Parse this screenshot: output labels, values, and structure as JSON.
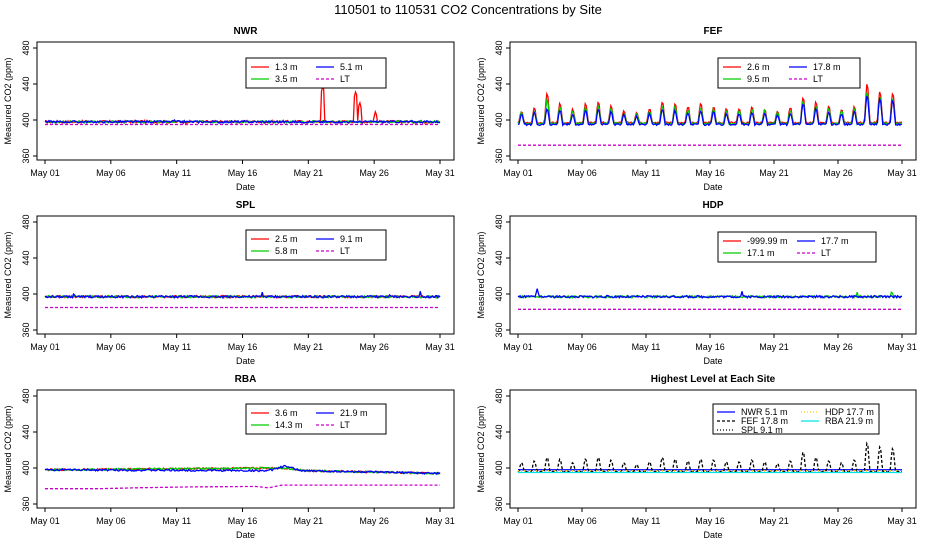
{
  "page": {
    "title": "110501  to  110531 CO2 Concentrations by Site"
  },
  "colors": {
    "red": "#ff0000",
    "green": "#00cc00",
    "blue": "#0000ff",
    "purple": "#cc00cc",
    "black": "#000000",
    "yellow": "#ffcc00",
    "cyan": "#00e5e5"
  },
  "chart_data": [
    {
      "type": "line",
      "title": "NWR",
      "xlabel": "Date",
      "ylabel": "Measured CO2 (ppm)",
      "x_ticks": [
        "May 01",
        "May 06",
        "May 11",
        "May 16",
        "May 21",
        "May 26",
        "May 31"
      ],
      "y_ticks": [
        "360",
        "400",
        "440",
        "480"
      ],
      "ylim": [
        360,
        480
      ],
      "xlim": [
        "May 01",
        "May 31"
      ],
      "grid": false,
      "legend": {
        "placement": "top-right",
        "columns": 2
      },
      "series": [
        {
          "name": "1.3 m",
          "color": "#ff0000",
          "style": "solid",
          "base": 398,
          "noise": 1.5,
          "spikes": [
            [
              22.1,
              438
            ],
            [
              24.6,
              432
            ],
            [
              24.9,
              420
            ],
            [
              26.1,
              410
            ]
          ]
        },
        {
          "name": "3.5 m",
          "color": "#00cc00",
          "style": "solid",
          "base": 398,
          "noise": 1.2,
          "spikes": []
        },
        {
          "name": "5.1 m",
          "color": "#0000ff",
          "style": "solid",
          "base": 398,
          "noise": 1.2,
          "spikes": [
            [
              10.8,
              402
            ]
          ]
        },
        {
          "name": "LT",
          "color": "#cc00cc",
          "style": "dashed",
          "base": 395,
          "noise": 0,
          "spikes": []
        }
      ]
    },
    {
      "type": "line",
      "title": "FEF",
      "xlabel": "Date",
      "ylabel": "Measured CO2 (ppm)",
      "x_ticks": [
        "May 01",
        "May 06",
        "May 11",
        "May 16",
        "May 21",
        "May 26",
        "May 31"
      ],
      "y_ticks": [
        "360",
        "400",
        "440",
        "480"
      ],
      "ylim": [
        360,
        480
      ],
      "xlim": [
        "May 01",
        "May 31"
      ],
      "grid": false,
      "legend": {
        "placement": "top-right",
        "columns": 2
      },
      "series": [
        {
          "name": "2.6 m",
          "color": "#ff0000",
          "style": "solid",
          "base": 397,
          "noise": 1,
          "daily_peaks": [
            410,
            413,
            430,
            418,
            412,
            418,
            420,
            416,
            410,
            408,
            413,
            420,
            418,
            415,
            418,
            415,
            412,
            412,
            415,
            412,
            410,
            414,
            425,
            420,
            415,
            412,
            415,
            440,
            432,
            430,
            412
          ]
        },
        {
          "name": "9.5 m",
          "color": "#00cc00",
          "style": "solid",
          "base": 396,
          "noise": 1,
          "daily_peaks": [
            408,
            410,
            422,
            414,
            410,
            414,
            416,
            412,
            408,
            406,
            410,
            416,
            414,
            412,
            414,
            412,
            410,
            410,
            412,
            410,
            408,
            411,
            420,
            416,
            412,
            410,
            412,
            432,
            426,
            424,
            410
          ]
        },
        {
          "name": "17.8 m",
          "color": "#0000ff",
          "style": "solid",
          "base": 395,
          "noise": 1,
          "daily_peaks": [
            406,
            408,
            412,
            410,
            406,
            410,
            412,
            409,
            406,
            404,
            407,
            412,
            410,
            408,
            410,
            409,
            407,
            407,
            409,
            407,
            405,
            408,
            418,
            412,
            408,
            406,
            409,
            428,
            424,
            422,
            406
          ]
        },
        {
          "name": "LT",
          "color": "#cc00cc",
          "style": "dashed",
          "base": 372,
          "noise": 0,
          "daily_peaks": []
        }
      ]
    },
    {
      "type": "line",
      "title": "SPL",
      "xlabel": "Date",
      "ylabel": "Measured CO2 (ppm)",
      "x_ticks": [
        "May 01",
        "May 06",
        "May 11",
        "May 16",
        "May 21",
        "May 26",
        "May 31"
      ],
      "y_ticks": [
        "360",
        "400",
        "440",
        "480"
      ],
      "ylim": [
        360,
        480
      ],
      "xlim": [
        "May 01",
        "May 31"
      ],
      "grid": false,
      "legend": {
        "placement": "top-right",
        "columns": 2
      },
      "series": [
        {
          "name": "2.5 m",
          "color": "#ff0000",
          "style": "solid",
          "base": 397,
          "noise": 1.2,
          "spikes": []
        },
        {
          "name": "5.8 m",
          "color": "#00cc00",
          "style": "solid",
          "base": 397,
          "noise": 1.2,
          "spikes": []
        },
        {
          "name": "9.1 m",
          "color": "#0000ff",
          "style": "solid",
          "base": 397,
          "noise": 1.2,
          "spikes": [
            [
              3.2,
              402
            ],
            [
              17.5,
              402
            ],
            [
              27.2,
              401
            ],
            [
              29.5,
              403
            ]
          ]
        },
        {
          "name": "LT",
          "color": "#cc00cc",
          "style": "dashed",
          "base": 385,
          "noise": 0,
          "spikes": []
        }
      ]
    },
    {
      "type": "line",
      "title": "HDP",
      "xlabel": "Date",
      "ylabel": "Measured CO2 (ppm)",
      "x_ticks": [
        "May 01",
        "May 06",
        "May 11",
        "May 16",
        "May 21",
        "May 26",
        "May 31"
      ],
      "y_ticks": [
        "360",
        "400",
        "440",
        "480"
      ],
      "ylim": [
        360,
        480
      ],
      "xlim": [
        "May 01",
        "May 31"
      ],
      "grid": false,
      "legend": {
        "placement": "top-right",
        "columns": 2
      },
      "series": [
        {
          "name": "-999.99 m",
          "color": "#ff0000",
          "style": "solid",
          "base": null,
          "noise": 0,
          "spikes": []
        },
        {
          "name": "17.1 m",
          "color": "#00cc00",
          "style": "solid",
          "base": 397,
          "noise": 1.2,
          "spikes": [
            [
              27.5,
              402
            ],
            [
              30.2,
              404
            ]
          ]
        },
        {
          "name": "17.7 m",
          "color": "#0000ff",
          "style": "solid",
          "base": 397,
          "noise": 1.2,
          "spikes": [
            [
              2.5,
              406
            ],
            [
              18.5,
              403
            ]
          ]
        },
        {
          "name": "LT",
          "color": "#cc00cc",
          "style": "dashed",
          "base": 383,
          "noise": 0,
          "spikes": []
        }
      ]
    },
    {
      "type": "line",
      "title": "RBA",
      "xlabel": "Date",
      "ylabel": "Measured CO2 (ppm)",
      "x_ticks": [
        "May 01",
        "May 06",
        "May 11",
        "May 16",
        "May 21",
        "May 26",
        "May 31"
      ],
      "y_ticks": [
        "360",
        "400",
        "440",
        "480"
      ],
      "ylim": [
        360,
        480
      ],
      "xlim": [
        "May 01",
        "May 31"
      ],
      "grid": false,
      "legend": {
        "placement": "top-right",
        "columns": 2
      },
      "series": [
        {
          "name": "3.6 m",
          "color": "#ff0000",
          "style": "solid",
          "base": 396,
          "noise": 1,
          "trend": [
            [
              1,
              398
            ],
            [
              19,
              400
            ],
            [
              21,
              397
            ],
            [
              31,
              394
            ]
          ]
        },
        {
          "name": "14.3 m",
          "color": "#00cc00",
          "style": "solid",
          "base": 396,
          "noise": 1,
          "trend": [
            [
              1,
              398
            ],
            [
              19,
              400
            ],
            [
              21,
              397
            ],
            [
              31,
              394
            ]
          ]
        },
        {
          "name": "21.9 m",
          "color": "#0000ff",
          "style": "solid",
          "base": 396,
          "noise": 1,
          "trend": [
            [
              1,
              398
            ],
            [
              18,
              397
            ],
            [
              19.2,
              402
            ],
            [
              20.5,
              397
            ],
            [
              31,
              394
            ]
          ]
        },
        {
          "name": "LT",
          "color": "#cc00cc",
          "style": "dashed",
          "base": 382,
          "noise": 0,
          "trend": [
            [
              1,
              377
            ],
            [
              5,
              377
            ],
            [
              8,
              378
            ],
            [
              12,
              379
            ],
            [
              17,
              379.5
            ],
            [
              18,
              378
            ],
            [
              19,
              381
            ],
            [
              20,
              381
            ],
            [
              31,
              381
            ]
          ]
        }
      ]
    },
    {
      "type": "line",
      "title": "Highest Level at Each Site",
      "xlabel": "Date",
      "ylabel": "Measured CO2 (ppm)",
      "x_ticks": [
        "May 01",
        "May 06",
        "May 11",
        "May 16",
        "May 21",
        "May 26",
        "May 31"
      ],
      "y_ticks": [
        "360",
        "400",
        "440",
        "480"
      ],
      "ylim": [
        360,
        480
      ],
      "xlim": [
        "May 01",
        "May 31"
      ],
      "grid": false,
      "legend": {
        "placement": "top-right",
        "columns": 2
      },
      "series": [
        {
          "name": "NWR  5.1 m",
          "color": "#0000ff",
          "style": "solid",
          "base": 398
        },
        {
          "name": "FEF  17.8 m",
          "color": "#000000",
          "style": "dashed",
          "base": 396,
          "diurnal": true
        },
        {
          "name": "SPL  9.1 m",
          "color": "#000000",
          "style": "dotted",
          "base": 397
        },
        {
          "name": "HDP  17.7 m",
          "color": "#ffcc00",
          "style": "dotted",
          "base": 397
        },
        {
          "name": "RBA  21.9 m",
          "color": "#00e5e5",
          "style": "solid",
          "base": 395
        }
      ]
    }
  ]
}
